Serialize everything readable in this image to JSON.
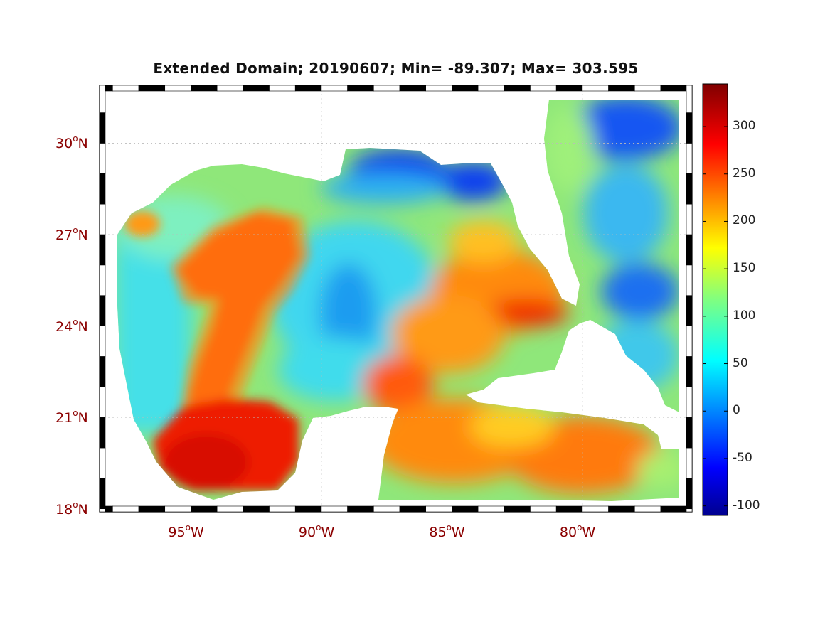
{
  "title": "Extended Domain; 20190607; Min= -89.307; Max= 303.595",
  "map": {
    "lat_labels": [
      {
        "value": "30",
        "hemi": "N"
      },
      {
        "value": "27",
        "hemi": "N"
      },
      {
        "value": "24",
        "hemi": "N"
      },
      {
        "value": "21",
        "hemi": "N"
      },
      {
        "value": "18",
        "hemi": "N"
      }
    ],
    "lon_labels": [
      {
        "value": "95",
        "hemi": "W"
      },
      {
        "value": "90",
        "hemi": "W"
      },
      {
        "value": "85",
        "hemi": "W"
      },
      {
        "value": "80",
        "hemi": "W"
      }
    ],
    "lat_range": [
      17.9,
      31.9
    ],
    "lon_range": [
      -98.5,
      -75.8
    ],
    "grid": true,
    "border": "black-white dashed frame"
  },
  "colorbar": {
    "ticks": [
      "300",
      "250",
      "200",
      "150",
      "100",
      "50",
      "0",
      "-50",
      "-100"
    ],
    "range": [
      -110,
      345
    ],
    "colormap": "jet"
  }
}
